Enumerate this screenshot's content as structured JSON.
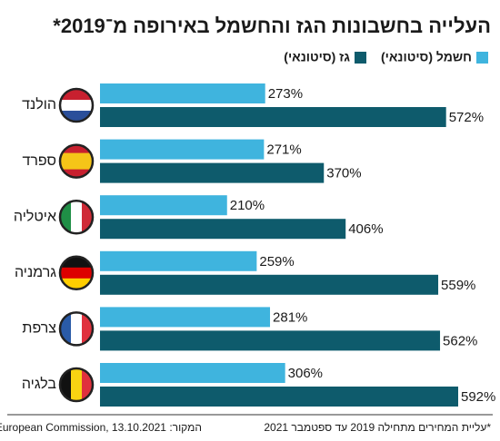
{
  "chart_data": {
    "type": "bar",
    "orientation": "horizontal",
    "title": "העלייה בחשבונות הגז והחשמל באירופה מ־2019*",
    "categories": [
      "הולנד",
      "ספרד",
      "איטליה",
      "גרמניה",
      "צרפת",
      "בלגיה"
    ],
    "series": [
      {
        "name": "חשמל (סיטונאי)",
        "color": "#3fb4de",
        "values": [
          273,
          271,
          210,
          259,
          281,
          306
        ],
        "value_labels": [
          "273%",
          "271%",
          "210%",
          "259%",
          "281%",
          "306%"
        ]
      },
      {
        "name": "גז (סיטונאי)",
        "color": "#0e5b6c",
        "values": [
          572,
          370,
          406,
          559,
          562,
          592
        ],
        "value_labels": [
          "572%",
          "370%",
          "406%",
          "559%",
          "562%",
          "592%"
        ]
      }
    ],
    "footnote": "*עליית המחירים מתחילה 2019 עד ספטמבר 2021",
    "source": "המקור: European Commission, 13.10.2021"
  }
}
